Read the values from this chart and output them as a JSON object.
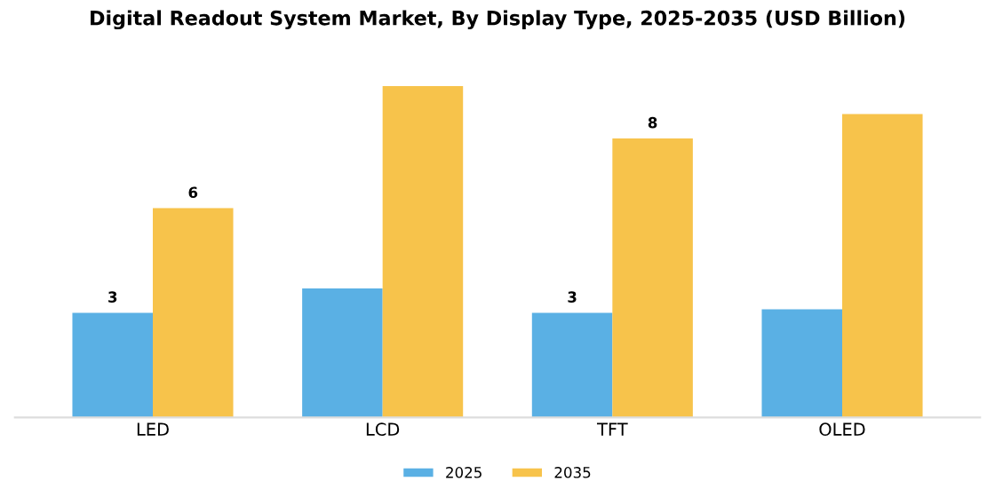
{
  "chart_data": {
    "type": "bar",
    "title": "Digital Readout System Market, By Display Type, 2025-2035 (USD Billion)",
    "categories": [
      "LED",
      "LCD",
      "TFT",
      "OLED"
    ],
    "legend": "bottom",
    "grid": false,
    "series": [
      {
        "name": "2025",
        "color": "#5ab0e4",
        "values": [
          3,
          3.7,
          3,
          3.1
        ],
        "value_labels": [
          "3",
          null,
          "3",
          null
        ]
      },
      {
        "name": "2035",
        "color": "#f7c34b",
        "values": [
          6,
          9.5,
          8,
          8.7
        ],
        "value_labels": [
          "6",
          null,
          "8",
          null
        ]
      }
    ]
  }
}
